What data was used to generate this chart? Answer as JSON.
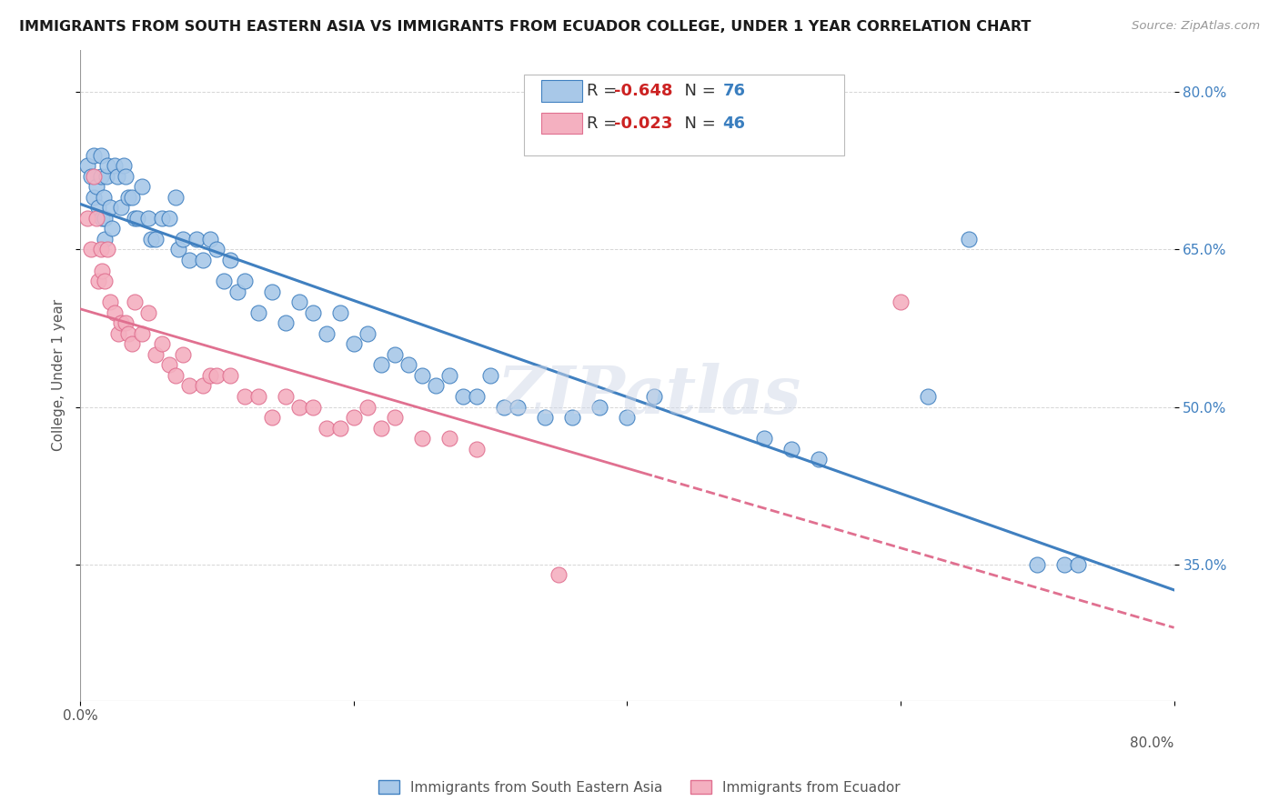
{
  "title": "IMMIGRANTS FROM SOUTH EASTERN ASIA VS IMMIGRANTS FROM ECUADOR COLLEGE, UNDER 1 YEAR CORRELATION CHART",
  "source": "Source: ZipAtlas.com",
  "ylabel": "College, Under 1 year",
  "xlim": [
    0.0,
    0.8
  ],
  "ylim": [
    0.22,
    0.84
  ],
  "color_blue": "#a8c8e8",
  "color_pink": "#f4b0c0",
  "line_color_blue": "#4080c0",
  "line_color_pink": "#e07090",
  "background_color": "#ffffff",
  "grid_color": "#cccccc",
  "watermark": "ZIPatlas",
  "blue_x": [
    0.005,
    0.008,
    0.01,
    0.01,
    0.012,
    0.013,
    0.015,
    0.015,
    0.016,
    0.017,
    0.018,
    0.018,
    0.019,
    0.02,
    0.022,
    0.023,
    0.025,
    0.027,
    0.03,
    0.032,
    0.033,
    0.035,
    0.038,
    0.04,
    0.042,
    0.045,
    0.05,
    0.052,
    0.055,
    0.06,
    0.065,
    0.07,
    0.072,
    0.075,
    0.08,
    0.085,
    0.09,
    0.095,
    0.1,
    0.105,
    0.11,
    0.115,
    0.12,
    0.13,
    0.14,
    0.15,
    0.16,
    0.17,
    0.18,
    0.19,
    0.2,
    0.21,
    0.22,
    0.23,
    0.24,
    0.25,
    0.26,
    0.27,
    0.28,
    0.29,
    0.3,
    0.31,
    0.32,
    0.34,
    0.36,
    0.38,
    0.4,
    0.42,
    0.5,
    0.52,
    0.54,
    0.62,
    0.65,
    0.7,
    0.72,
    0.73
  ],
  "blue_y": [
    0.73,
    0.72,
    0.74,
    0.7,
    0.71,
    0.69,
    0.74,
    0.72,
    0.68,
    0.7,
    0.66,
    0.68,
    0.72,
    0.73,
    0.69,
    0.67,
    0.73,
    0.72,
    0.69,
    0.73,
    0.72,
    0.7,
    0.7,
    0.68,
    0.68,
    0.71,
    0.68,
    0.66,
    0.66,
    0.68,
    0.68,
    0.7,
    0.65,
    0.66,
    0.64,
    0.66,
    0.64,
    0.66,
    0.65,
    0.62,
    0.64,
    0.61,
    0.62,
    0.59,
    0.61,
    0.58,
    0.6,
    0.59,
    0.57,
    0.59,
    0.56,
    0.57,
    0.54,
    0.55,
    0.54,
    0.53,
    0.52,
    0.53,
    0.51,
    0.51,
    0.53,
    0.5,
    0.5,
    0.49,
    0.49,
    0.5,
    0.49,
    0.51,
    0.47,
    0.46,
    0.45,
    0.51,
    0.66,
    0.35,
    0.35,
    0.35
  ],
  "pink_x": [
    0.005,
    0.008,
    0.01,
    0.012,
    0.013,
    0.015,
    0.016,
    0.018,
    0.02,
    0.022,
    0.025,
    0.028,
    0.03,
    0.033,
    0.035,
    0.038,
    0.04,
    0.045,
    0.05,
    0.055,
    0.06,
    0.065,
    0.07,
    0.075,
    0.08,
    0.09,
    0.095,
    0.1,
    0.11,
    0.12,
    0.13,
    0.14,
    0.15,
    0.16,
    0.17,
    0.18,
    0.19,
    0.2,
    0.21,
    0.22,
    0.23,
    0.25,
    0.27,
    0.29,
    0.35,
    0.6
  ],
  "pink_y": [
    0.68,
    0.65,
    0.72,
    0.68,
    0.62,
    0.65,
    0.63,
    0.62,
    0.65,
    0.6,
    0.59,
    0.57,
    0.58,
    0.58,
    0.57,
    0.56,
    0.6,
    0.57,
    0.59,
    0.55,
    0.56,
    0.54,
    0.53,
    0.55,
    0.52,
    0.52,
    0.53,
    0.53,
    0.53,
    0.51,
    0.51,
    0.49,
    0.51,
    0.5,
    0.5,
    0.48,
    0.48,
    0.49,
    0.5,
    0.48,
    0.49,
    0.47,
    0.47,
    0.46,
    0.34,
    0.6
  ]
}
